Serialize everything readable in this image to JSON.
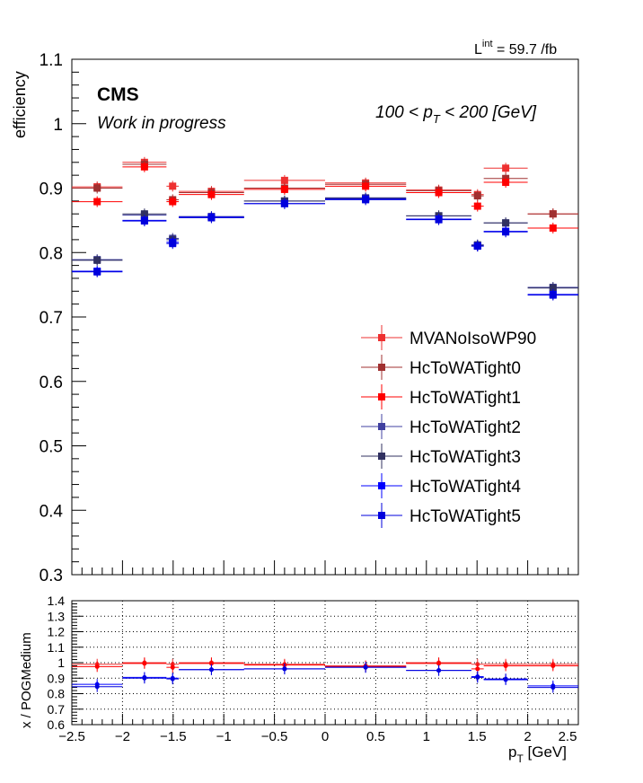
{
  "header": {
    "lumi_label": "L",
    "lumi_sup": "int",
    "lumi_value": " = 59.7 /fb",
    "experiment": "CMS",
    "status": "Work in progress",
    "bin_label_a": "100 < p",
    "bin_label_sub": "T",
    "bin_label_b": " < 200 [GeV]"
  },
  "chart_data": [
    {
      "type": "scatter",
      "panel": "main",
      "ylabel": "efficiency",
      "xlim": [
        -2.5,
        2.5
      ],
      "ylim": [
        0.3,
        1.1
      ],
      "y_ticks": [
        "0.3",
        "0.4",
        "0.5",
        "0.6",
        "0.7",
        "0.8",
        "0.9",
        "1",
        "1.1"
      ],
      "grid": false,
      "legend_position": "right",
      "x_bins": [
        [
          -2.5,
          -2.0
        ],
        [
          -2.0,
          -1.566
        ],
        [
          -1.566,
          -1.444
        ],
        [
          -1.444,
          -0.8
        ],
        [
          -0.8,
          0.0
        ],
        [
          0.0,
          0.8
        ],
        [
          0.8,
          1.444
        ],
        [
          1.444,
          1.566
        ],
        [
          1.566,
          2.0
        ],
        [
          2.0,
          2.5
        ]
      ],
      "series": [
        {
          "name": "MVANoIsoWP90",
          "color": "#ee3030",
          "values": [
            0.902,
            0.94,
            0.903,
            0.895,
            0.912,
            0.908,
            0.897,
            0.89,
            0.931,
            0.86
          ]
        },
        {
          "name": "HcToWATight0",
          "color": "#a03030",
          "values": [
            0.9,
            0.937,
            0.882,
            0.893,
            0.9,
            0.906,
            0.896,
            0.888,
            0.915,
            0.86
          ]
        },
        {
          "name": "HcToWATight1",
          "color": "#ff0000",
          "values": [
            0.879,
            0.933,
            0.879,
            0.89,
            0.898,
            0.903,
            0.893,
            0.872,
            0.909,
            0.838
          ]
        },
        {
          "name": "HcToWATight2",
          "color": "#4040a0",
          "values": [
            0.789,
            0.858,
            0.822,
            0.856,
            0.88,
            0.885,
            0.857,
            0.812,
            0.846,
            0.746
          ]
        },
        {
          "name": "HcToWATight3",
          "color": "#303060",
          "values": [
            0.788,
            0.86,
            0.82,
            0.855,
            0.88,
            0.884,
            0.857,
            0.811,
            0.846,
            0.745
          ]
        },
        {
          "name": "HcToWATight4",
          "color": "#0000ff",
          "values": [
            0.771,
            0.85,
            0.816,
            0.855,
            0.876,
            0.883,
            0.852,
            0.81,
            0.833,
            0.735
          ]
        },
        {
          "name": "HcToWATight5",
          "color": "#0000dd",
          "values": [
            0.77,
            0.849,
            0.814,
            0.854,
            0.876,
            0.882,
            0.851,
            0.81,
            0.832,
            0.734
          ]
        }
      ]
    },
    {
      "type": "scatter",
      "panel": "ratio",
      "xlabel_a": "p",
      "xlabel_sub": "T",
      "xlabel_b": " [GeV]",
      "ylabel": "x / POGMedium",
      "xlim": [
        -2.5,
        2.5
      ],
      "ylim": [
        0.6,
        1.4
      ],
      "x_ticks": [
        "−2.5",
        "−2",
        "−1.5",
        "−1",
        "−0.5",
        "0",
        "0.5",
        "1",
        "1.5",
        "2",
        "2.5"
      ],
      "y_ticks": [
        "0.6",
        "0.7",
        "0.8",
        "0.9",
        "1",
        "1.1",
        "1.2",
        "1.3",
        "1.4"
      ],
      "grid": true,
      "series": [
        {
          "name": "MVANoIsoWP90",
          "color": "#ee3030",
          "values": [
            0.99,
            1.0,
            0.99,
            1.0,
            0.99,
            0.98,
            1.0,
            0.99,
            0.99,
            0.99
          ]
        },
        {
          "name": "HcToWATight1",
          "color": "#ff0000",
          "values": [
            0.975,
            0.995,
            0.97,
            0.995,
            0.985,
            0.975,
            0.995,
            0.96,
            0.98,
            0.98
          ]
        },
        {
          "name": "HcToWATight4",
          "color": "#0000ff",
          "values": [
            0.86,
            0.905,
            0.9,
            0.955,
            0.96,
            0.97,
            0.95,
            0.91,
            0.89,
            0.85
          ]
        },
        {
          "name": "HcToWATight5",
          "color": "#0000dd",
          "values": [
            0.845,
            0.9,
            0.895,
            0.955,
            0.96,
            0.97,
            0.95,
            0.905,
            0.895,
            0.84
          ]
        }
      ]
    }
  ]
}
